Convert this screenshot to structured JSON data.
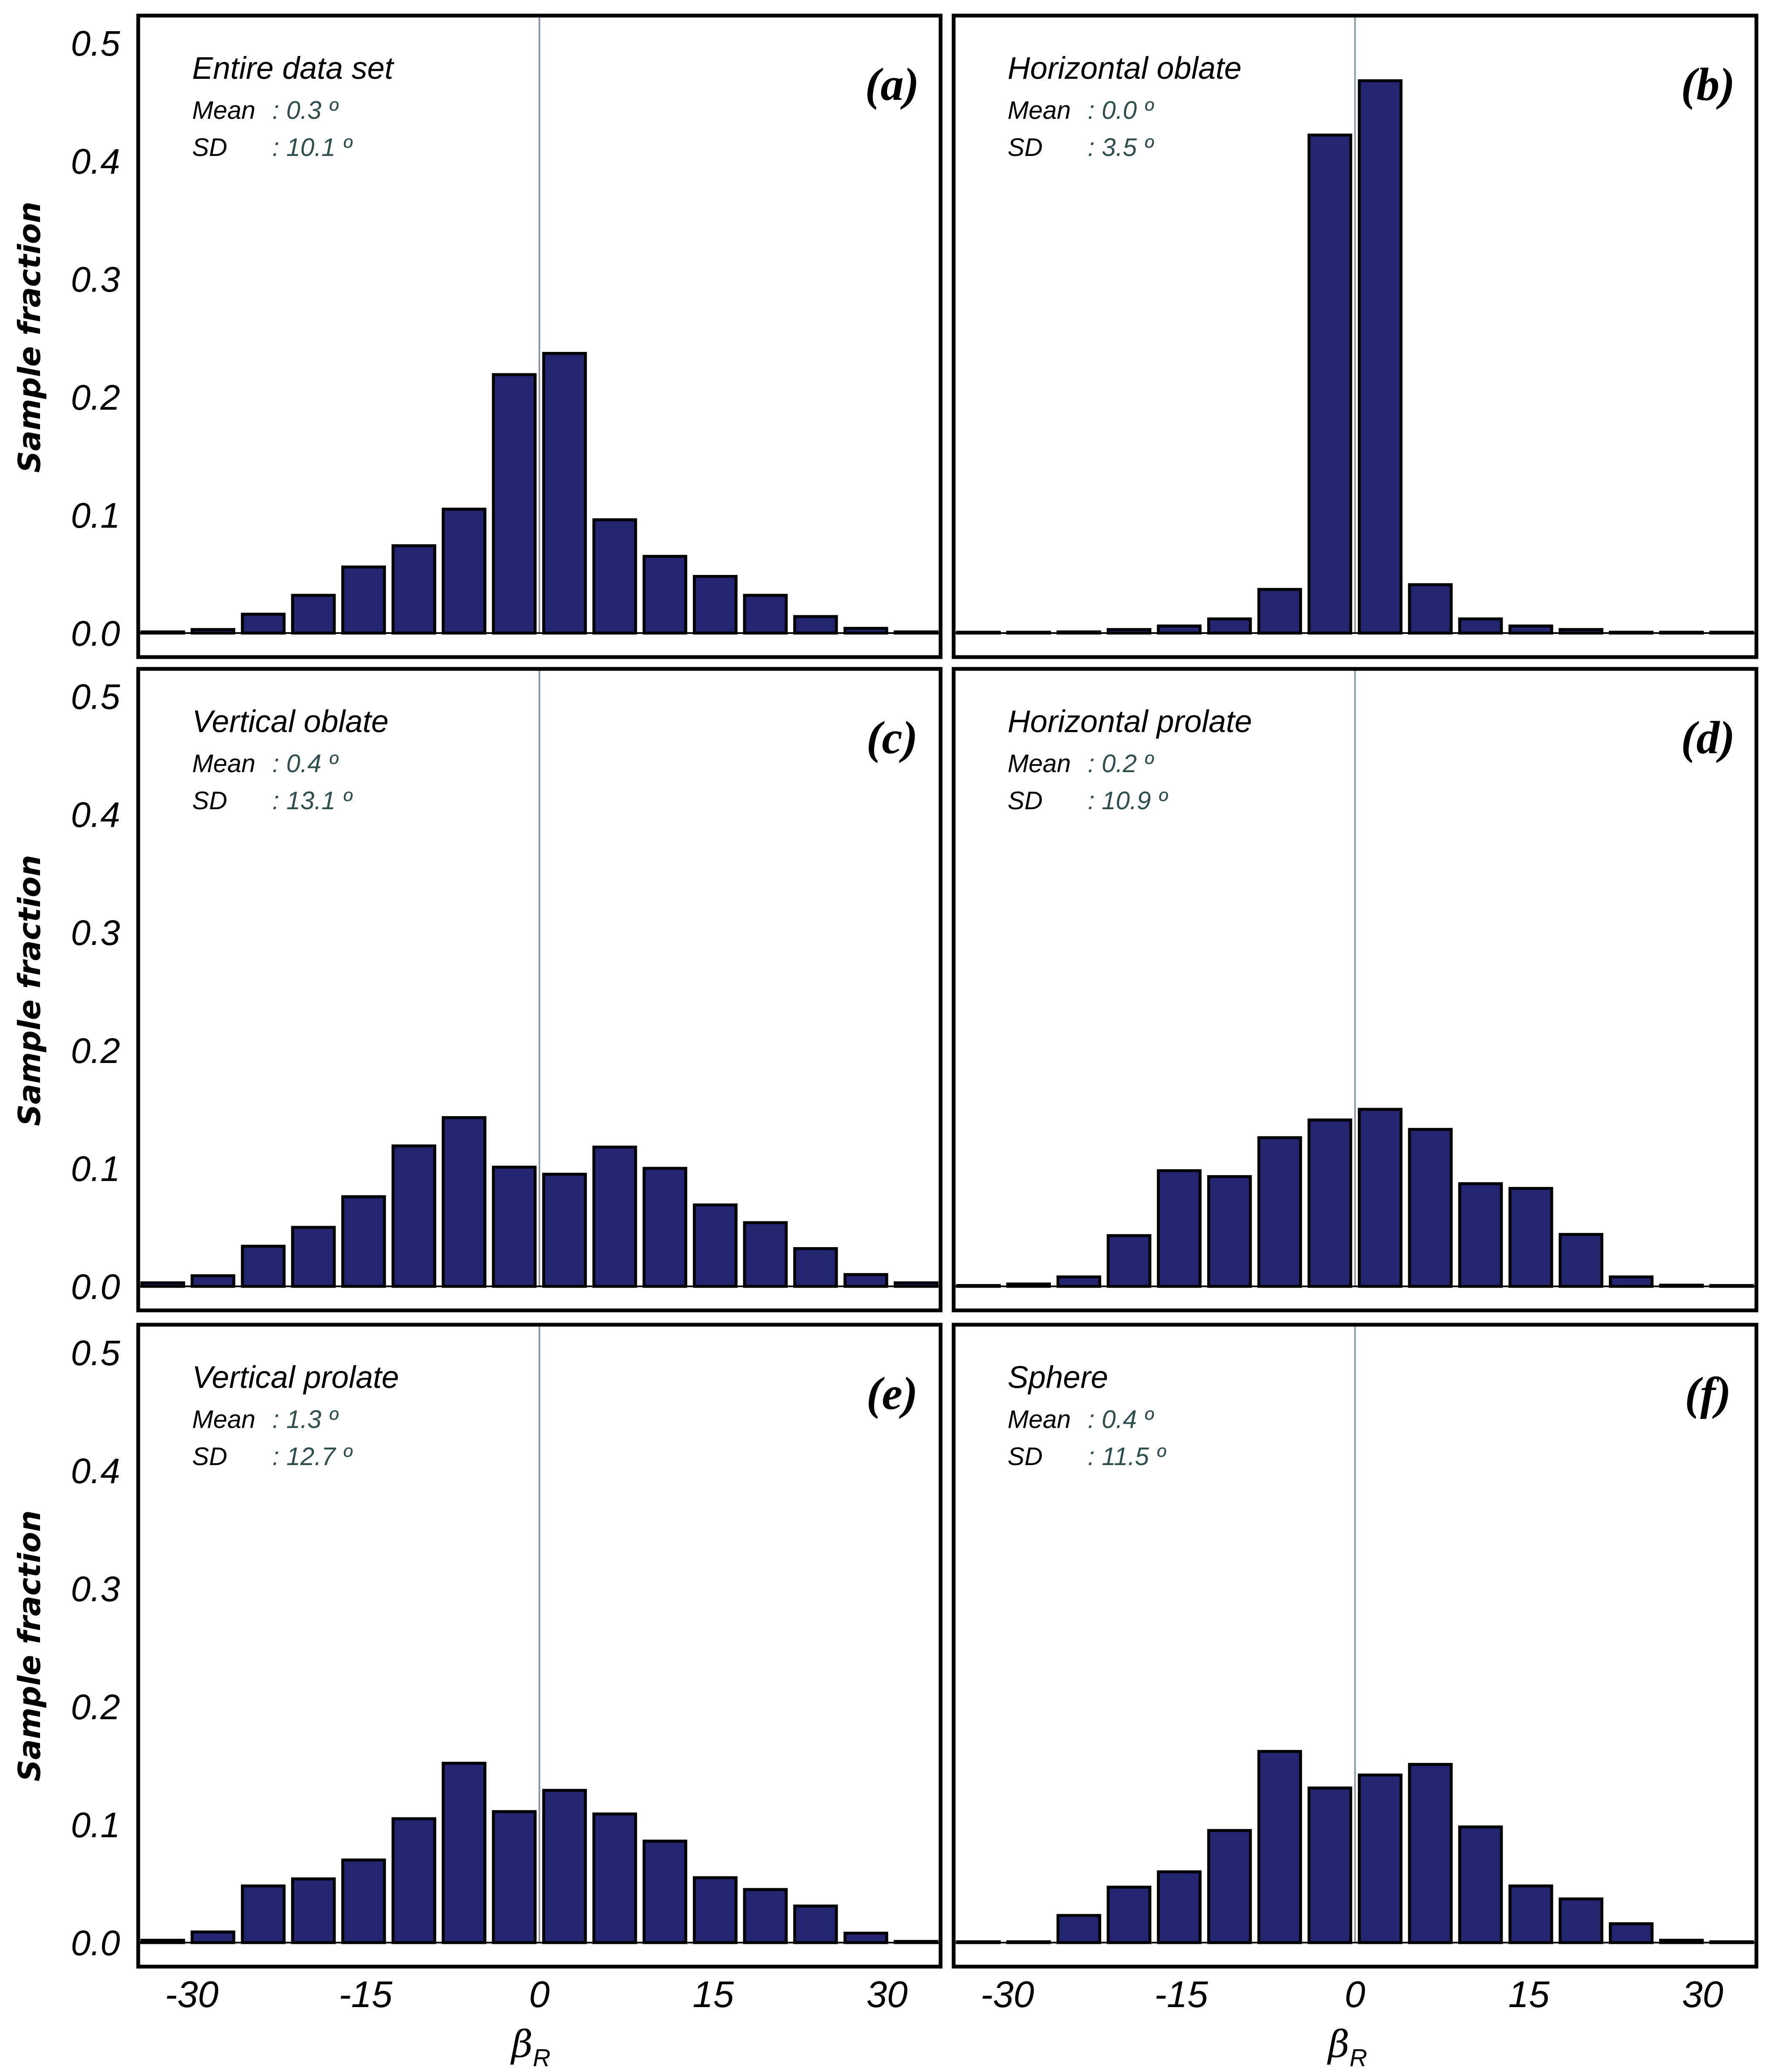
{
  "chart_data": {
    "type": "bar",
    "layout": "3x2 grid of histograms",
    "shared_ylabel": "Sample fraction",
    "shared_xlabel": "β",
    "shared_xlabel_subscript": "R",
    "ylim": [
      0,
      0.5
    ],
    "yticks": [
      "0.0",
      "0.1",
      "0.2",
      "0.3",
      "0.4",
      "0.5"
    ],
    "ytick_values": [
      0,
      0.1,
      0.2,
      0.3,
      0.4,
      0.5
    ],
    "xlim": [
      -35,
      35
    ],
    "xticks": [
      "-30",
      "-15",
      "0",
      "15",
      "30"
    ],
    "xtick_values": [
      -30,
      -15,
      0,
      15,
      30
    ],
    "bin_centers": [
      -32.5,
      -28.17,
      -23.83,
      -19.5,
      -15.17,
      -10.83,
      -6.5,
      -2.17,
      2.17,
      6.5,
      10.83,
      15.17,
      19.5,
      23.83,
      28.17,
      32.5
    ],
    "reference_line_x": 0,
    "bar_color": "#232571",
    "stat_value_color": "#2f4f4f",
    "panels": [
      {
        "label": "(a)",
        "title": "Entire data set",
        "mean_key": "Mean",
        "mean": ": 0.3 º",
        "sd_key": "SD",
        "sd": ": 10.1 º",
        "values": [
          0.001,
          0.003,
          0.016,
          0.032,
          0.056,
          0.074,
          0.105,
          0.219,
          0.237,
          0.096,
          0.065,
          0.048,
          0.032,
          0.014,
          0.004,
          0.001
        ]
      },
      {
        "label": "(b)",
        "title": "Horizontal oblate",
        "mean_key": "Mean",
        "mean": ": 0.0 º",
        "sd_key": "SD",
        "sd": ": 3.5 º",
        "values": [
          0.0,
          0.0,
          0.001,
          0.003,
          0.006,
          0.012,
          0.037,
          0.422,
          0.468,
          0.041,
          0.012,
          0.006,
          0.003,
          0.0,
          0.0,
          0.0
        ]
      },
      {
        "label": "(c)",
        "title": "Vertical oblate",
        "mean_key": "Mean",
        "mean": ": 0.4 º",
        "sd_key": "SD",
        "sd": ": 13.1 º",
        "values": [
          0.003,
          0.009,
          0.034,
          0.05,
          0.076,
          0.119,
          0.143,
          0.101,
          0.095,
          0.118,
          0.1,
          0.069,
          0.054,
          0.032,
          0.01,
          0.003
        ]
      },
      {
        "label": "(d)",
        "title": "Horizontal  prolate",
        "mean_key": "Mean",
        "mean": ": 0.2 º",
        "sd_key": "SD",
        "sd": ": 10.9 º",
        "values": [
          0.0,
          0.002,
          0.008,
          0.043,
          0.098,
          0.093,
          0.126,
          0.141,
          0.15,
          0.133,
          0.087,
          0.083,
          0.044,
          0.008,
          0.001,
          0.0
        ]
      },
      {
        "label": "(e)",
        "title": "Vertical prolate",
        "mean_key": "Mean",
        "mean": ": 1.3 º",
        "sd_key": "SD",
        "sd": ": 12.7 º",
        "values": [
          0.002,
          0.009,
          0.048,
          0.054,
          0.07,
          0.105,
          0.152,
          0.111,
          0.129,
          0.109,
          0.086,
          0.055,
          0.045,
          0.031,
          0.008,
          0.001
        ]
      },
      {
        "label": "(f)",
        "title": "Sphere",
        "mean_key": "Mean",
        "mean": ": 0.4 º",
        "sd_key": "SD",
        "sd": ": 11.5 º",
        "values": [
          0.0,
          0.0,
          0.023,
          0.047,
          0.06,
          0.095,
          0.162,
          0.131,
          0.142,
          0.151,
          0.098,
          0.048,
          0.037,
          0.016,
          0.002,
          0.0
        ]
      }
    ]
  }
}
